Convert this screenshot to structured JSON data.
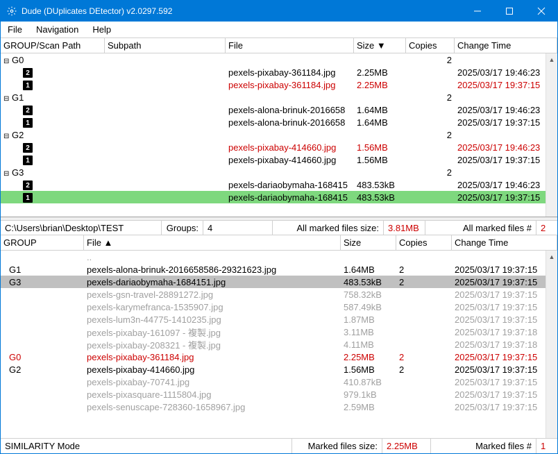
{
  "window": {
    "title": "Dude (DUplicates DEtector) v2.0297.592"
  },
  "menu": {
    "file": "File",
    "navigation": "Navigation",
    "help": "Help"
  },
  "top_columns": {
    "group": "GROUP/Scan Path",
    "subpath": "Subpath",
    "file": "File",
    "size": "Size ▼",
    "copies": "Copies",
    "change": "Change Time"
  },
  "top_widths": {
    "group": 150,
    "subpath": 174,
    "file": 185,
    "size": 75,
    "copies": 70,
    "change": 116
  },
  "groups": [
    {
      "name": "G0",
      "copies": "2",
      "rows": [
        {
          "badge": "2",
          "file": "pexels-pixabay-361184.jpg",
          "size": "2.25MB",
          "change": "2025/03/17 19:46:23",
          "flag": ""
        },
        {
          "badge": "1",
          "file": "pexels-pixabay-361184.jpg",
          "size": "2.25MB",
          "change": "2025/03/17 19:37:15",
          "flag": "red"
        }
      ]
    },
    {
      "name": "G1",
      "copies": "2",
      "rows": [
        {
          "badge": "2",
          "file": "pexels-alona-brinuk-2016658",
          "size": "1.64MB",
          "change": "2025/03/17 19:46:23",
          "flag": ""
        },
        {
          "badge": "1",
          "file": "pexels-alona-brinuk-2016658",
          "size": "1.64MB",
          "change": "2025/03/17 19:37:15",
          "flag": ""
        }
      ]
    },
    {
      "name": "G2",
      "copies": "2",
      "rows": [
        {
          "badge": "2",
          "file": "pexels-pixabay-414660.jpg",
          "size": "1.56MB",
          "change": "2025/03/17 19:46:23",
          "flag": "red"
        },
        {
          "badge": "1",
          "file": "pexels-pixabay-414660.jpg",
          "size": "1.56MB",
          "change": "2025/03/17 19:37:15",
          "flag": ""
        }
      ]
    },
    {
      "name": "G3",
      "copies": "2",
      "rows": [
        {
          "badge": "2",
          "file": "pexels-dariaobymaha-168415",
          "size": "483.53kB",
          "change": "2025/03/17 19:46:23",
          "flag": ""
        },
        {
          "badge": "1",
          "file": "pexels-dariaobymaha-168415",
          "size": "483.53kB",
          "change": "2025/03/17 19:37:15",
          "flag": "green"
        }
      ]
    }
  ],
  "mid_status": {
    "path": "C:\\Users\\brian\\Desktop\\TEST",
    "groups_label": "Groups:",
    "groups_value": "4",
    "marked_size_label": "All marked files size:",
    "marked_size_value": "3.81MB",
    "marked_count_label": "All marked files #",
    "marked_count_value": "2"
  },
  "bottom_columns": {
    "group": "GROUP",
    "file": "File ▲",
    "size": "Size",
    "copies": "Copies",
    "change": "Change Time"
  },
  "bottom_widths": {
    "group": 120,
    "file": 370,
    "size": 80,
    "copies": 80,
    "change": 120
  },
  "bottom_rows": [
    {
      "group": "",
      "file": "..",
      "size": "",
      "copies": "",
      "change": "",
      "flag": "gray"
    },
    {
      "group": "G1",
      "file": "pexels-alona-brinuk-2016658586-29321623.jpg",
      "size": "1.64MB",
      "copies": "2",
      "change": "2025/03/17 19:37:15",
      "flag": ""
    },
    {
      "group": "G3",
      "file": "pexels-dariaobymaha-1684151.jpg",
      "size": "483.53kB",
      "copies": "2",
      "change": "2025/03/17 19:37:15",
      "flag": "sel"
    },
    {
      "group": "",
      "file": "pexels-gsn-travel-28891272.jpg",
      "size": "758.32kB",
      "copies": "",
      "change": "2025/03/17 19:37:15",
      "flag": "gray"
    },
    {
      "group": "",
      "file": "pexels-karymefranca-1535907.jpg",
      "size": "587.49kB",
      "copies": "",
      "change": "2025/03/17 19:37:15",
      "flag": "gray"
    },
    {
      "group": "",
      "file": "pexels-lum3n-44775-1410235.jpg",
      "size": "1.87MB",
      "copies": "",
      "change": "2025/03/17 19:37:15",
      "flag": "gray"
    },
    {
      "group": "",
      "file": "pexels-pixabay-161097 - 複製.jpg",
      "size": "3.11MB",
      "copies": "",
      "change": "2025/03/17 19:37:18",
      "flag": "gray"
    },
    {
      "group": "",
      "file": "pexels-pixabay-208321 - 複製.jpg",
      "size": "4.11MB",
      "copies": "",
      "change": "2025/03/17 19:37:18",
      "flag": "gray"
    },
    {
      "group": "G0",
      "file": "pexels-pixabay-361184.jpg",
      "size": "2.25MB",
      "copies": "2",
      "change": "2025/03/17 19:37:15",
      "flag": "red"
    },
    {
      "group": "G2",
      "file": "pexels-pixabay-414660.jpg",
      "size": "1.56MB",
      "copies": "2",
      "change": "2025/03/17 19:37:15",
      "flag": ""
    },
    {
      "group": "",
      "file": "pexels-pixabay-70741.jpg",
      "size": "410.87kB",
      "copies": "",
      "change": "2025/03/17 19:37:15",
      "flag": "gray"
    },
    {
      "group": "",
      "file": "pexels-pixasquare-1115804.jpg",
      "size": "979.1kB",
      "copies": "",
      "change": "2025/03/17 19:37:15",
      "flag": "gray"
    },
    {
      "group": "",
      "file": "pexels-senuscape-728360-1658967.jpg",
      "size": "2.59MB",
      "copies": "",
      "change": "2025/03/17 19:37:15",
      "flag": "gray"
    }
  ],
  "bottom_status": {
    "mode": "SIMILARITY Mode",
    "marked_size_label": "Marked files size:",
    "marked_size_value": "2.25MB",
    "marked_count_label": "Marked files #",
    "marked_count_value": "1"
  }
}
